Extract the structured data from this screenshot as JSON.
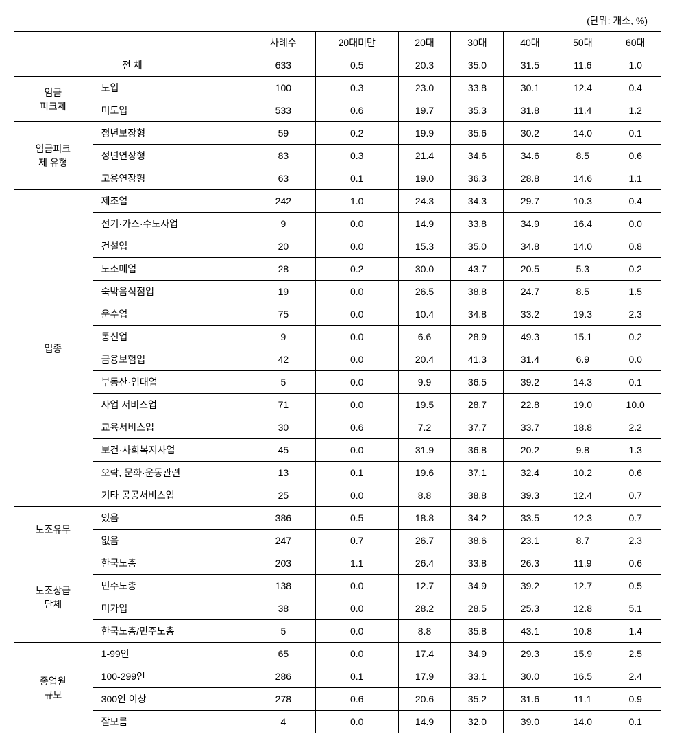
{
  "unit_label": "(단위: 개소, %)",
  "headers": {
    "blank": "",
    "sarye": "사례수",
    "under20": "20대미만",
    "20s": "20대",
    "30s": "30대",
    "40s": "40대",
    "50s": "50대",
    "60s": "60대"
  },
  "total": {
    "label": "전 체",
    "values": [
      "633",
      "0.5",
      "20.3",
      "35.0",
      "31.5",
      "11.6",
      "1.0"
    ]
  },
  "groups": [
    {
      "label_lines": [
        "임금",
        "피크제"
      ],
      "rows": [
        {
          "label": "도입",
          "values": [
            "100",
            "0.3",
            "23.0",
            "33.8",
            "30.1",
            "12.4",
            "0.4"
          ]
        },
        {
          "label": "미도입",
          "values": [
            "533",
            "0.6",
            "19.7",
            "35.3",
            "31.8",
            "11.4",
            "1.2"
          ]
        }
      ]
    },
    {
      "label_lines": [
        "임금피크",
        "제   유형"
      ],
      "rows": [
        {
          "label": "정년보장형",
          "values": [
            "59",
            "0.2",
            "19.9",
            "35.6",
            "30.2",
            "14.0",
            "0.1"
          ]
        },
        {
          "label": "정년연장형",
          "values": [
            "83",
            "0.3",
            "21.4",
            "34.6",
            "34.6",
            "8.5",
            "0.6"
          ]
        },
        {
          "label": "고용연장형",
          "values": [
            "63",
            "0.1",
            "19.0",
            "36.3",
            "28.8",
            "14.6",
            "1.1"
          ]
        }
      ]
    },
    {
      "label_lines": [
        "업종"
      ],
      "rows": [
        {
          "label": "제조업",
          "values": [
            "242",
            "1.0",
            "24.3",
            "34.3",
            "29.7",
            "10.3",
            "0.4"
          ]
        },
        {
          "label": "전기·가스·수도사업",
          "values": [
            "9",
            "0.0",
            "14.9",
            "33.8",
            "34.9",
            "16.4",
            "0.0"
          ]
        },
        {
          "label": "건설업",
          "values": [
            "20",
            "0.0",
            "15.3",
            "35.0",
            "34.8",
            "14.0",
            "0.8"
          ]
        },
        {
          "label": "도소매업",
          "values": [
            "28",
            "0.2",
            "30.0",
            "43.7",
            "20.5",
            "5.3",
            "0.2"
          ]
        },
        {
          "label": "숙박음식점업",
          "values": [
            "19",
            "0.0",
            "26.5",
            "38.8",
            "24.7",
            "8.5",
            "1.5"
          ]
        },
        {
          "label": "운수업",
          "values": [
            "75",
            "0.0",
            "10.4",
            "34.8",
            "33.2",
            "19.3",
            "2.3"
          ]
        },
        {
          "label": "통신업",
          "values": [
            "9",
            "0.0",
            "6.6",
            "28.9",
            "49.3",
            "15.1",
            "0.2"
          ]
        },
        {
          "label": "금융보험업",
          "values": [
            "42",
            "0.0",
            "20.4",
            "41.3",
            "31.4",
            "6.9",
            "0.0"
          ]
        },
        {
          "label": "부동산·임대업",
          "values": [
            "5",
            "0.0",
            "9.9",
            "36.5",
            "39.2",
            "14.3",
            "0.1"
          ]
        },
        {
          "label": "사업 서비스업",
          "values": [
            "71",
            "0.0",
            "19.5",
            "28.7",
            "22.8",
            "19.0",
            "10.0"
          ]
        },
        {
          "label": "교육서비스업",
          "values": [
            "30",
            "0.6",
            "7.2",
            "37.7",
            "33.7",
            "18.8",
            "2.2"
          ]
        },
        {
          "label": "보건·사회복지사업",
          "values": [
            "45",
            "0.0",
            "31.9",
            "36.8",
            "20.2",
            "9.8",
            "1.3"
          ]
        },
        {
          "label": "오락, 문화·운동관련",
          "values": [
            "13",
            "0.1",
            "19.6",
            "37.1",
            "32.4",
            "10.2",
            "0.6"
          ]
        },
        {
          "label": "기타 공공서비스업",
          "values": [
            "25",
            "0.0",
            "8.8",
            "38.8",
            "39.3",
            "12.4",
            "0.7"
          ]
        }
      ]
    },
    {
      "label_lines": [
        "노조유무"
      ],
      "rows": [
        {
          "label": "있음",
          "values": [
            "386",
            "0.5",
            "18.8",
            "34.2",
            "33.5",
            "12.3",
            "0.7"
          ]
        },
        {
          "label": "없음",
          "values": [
            "247",
            "0.7",
            "26.7",
            "38.6",
            "23.1",
            "8.7",
            "2.3"
          ]
        }
      ]
    },
    {
      "label_lines": [
        "노조상급",
        "단체"
      ],
      "rows": [
        {
          "label": "한국노총",
          "values": [
            "203",
            "1.1",
            "26.4",
            "33.8",
            "26.3",
            "11.9",
            "0.6"
          ]
        },
        {
          "label": "민주노총",
          "values": [
            "138",
            "0.0",
            "12.7",
            "34.9",
            "39.2",
            "12.7",
            "0.5"
          ]
        },
        {
          "label": "미가입",
          "values": [
            "38",
            "0.0",
            "28.2",
            "28.5",
            "25.3",
            "12.8",
            "5.1"
          ]
        },
        {
          "label": "한국노총/민주노총",
          "values": [
            "5",
            "0.0",
            "8.8",
            "35.8",
            "43.1",
            "10.8",
            "1.4"
          ]
        }
      ]
    },
    {
      "label_lines": [
        "종업원",
        "규모"
      ],
      "rows": [
        {
          "label": "1-99인",
          "values": [
            "65",
            "0.0",
            "17.4",
            "34.9",
            "29.3",
            "15.9",
            "2.5"
          ]
        },
        {
          "label": "100-299인",
          "values": [
            "286",
            "0.1",
            "17.9",
            "33.1",
            "30.0",
            "16.5",
            "2.4"
          ]
        },
        {
          "label": "300인 이상",
          "values": [
            "278",
            "0.6",
            "20.6",
            "35.2",
            "31.6",
            "11.1",
            "0.9"
          ]
        },
        {
          "label": "잘모름",
          "values": [
            "4",
            "0.0",
            "14.9",
            "32.0",
            "39.0",
            "14.0",
            "0.1"
          ]
        }
      ]
    }
  ]
}
